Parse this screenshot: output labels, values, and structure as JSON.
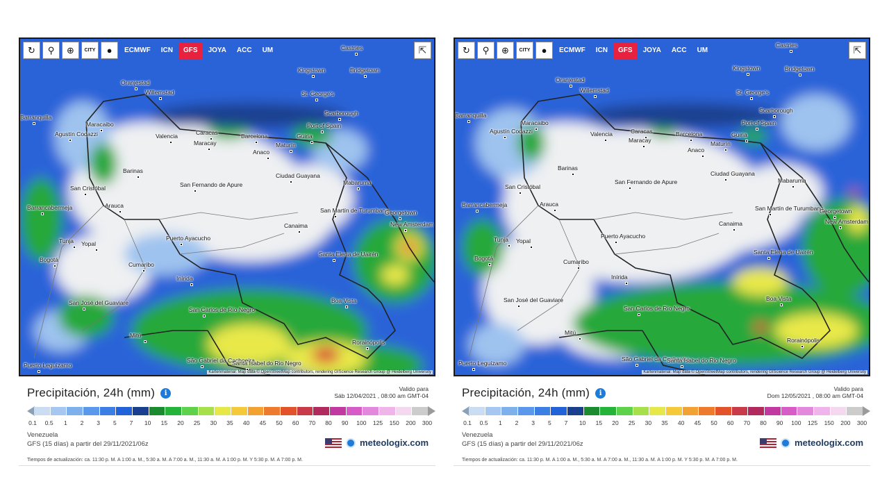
{
  "panels": [
    {
      "toolbar": {
        "buttons": [
          {
            "name": "reload",
            "glyph": "↻"
          },
          {
            "name": "location",
            "glyph": "⚲"
          },
          {
            "name": "zoom",
            "glyph": "⊕"
          },
          {
            "name": "city",
            "glyph": "CITY"
          },
          {
            "name": "dot",
            "glyph": "●"
          }
        ],
        "models": [
          "ECMWF",
          "ICN",
          "GFS",
          "JOYA",
          "ACC",
          "UM"
        ],
        "active_model": "GFS",
        "share_glyph": "⇱"
      },
      "title": "Precipitación, 24h (mm)",
      "valid_label": "Valido para",
      "valid_date": "Sáb 12/04/2021 , 08:00 am GMT-04",
      "region": "Venezuela",
      "run": "GFS (15 días) a partir del 29/11/2021/06z",
      "brand": "meteologix.com",
      "updates": "Tiempos de actualización: ca. 11:30 p. M. A 1:00 a. M., 5:30 a. M. A 7:00 a. M., 11:30 a. M. A 1:00 p. M. Y 5:30 p. M. A 7:00 p. M.",
      "attribution": "Kartenmaterial: Map data © OpenStreetMap contributors, rendering GIScience Research Group @ Heidelberg University",
      "cities": [
        {
          "name": "Castries"
        },
        {
          "name": "Kingstown"
        },
        {
          "name": "Bridgetown"
        },
        {
          "name": "Oranjestad"
        },
        {
          "name": "Willemstad"
        },
        {
          "name": "St. George's"
        },
        {
          "name": "Scarborough"
        },
        {
          "name": "Barranquilla"
        },
        {
          "name": "Maracaibo"
        },
        {
          "name": "Port of Spain"
        },
        {
          "name": "Valencia"
        },
        {
          "name": "Caracas"
        },
        {
          "name": "Maracay"
        },
        {
          "name": "Barcelona"
        },
        {
          "name": "Güiria"
        },
        {
          "name": "Agustín Codazzi"
        },
        {
          "name": "Anaco"
        },
        {
          "name": "Maturín"
        },
        {
          "name": "Barinas"
        },
        {
          "name": "Ciudad Guayana"
        },
        {
          "name": "San Cristóbal"
        },
        {
          "name": "San Fernando de Apure"
        },
        {
          "name": "Mabaruma"
        },
        {
          "name": "Arauca"
        },
        {
          "name": "Barrancabermeja"
        },
        {
          "name": "San Martín de Turumbang"
        },
        {
          "name": "Georgetown"
        },
        {
          "name": "New Amsterdam"
        },
        {
          "name": "Canaima"
        },
        {
          "name": "Tunja"
        },
        {
          "name": "Yopal"
        },
        {
          "name": "Puerto Ayacucho"
        },
        {
          "name": "Bogotá"
        },
        {
          "name": "Cumaribo"
        },
        {
          "name": "Santa Elena de Uairén"
        },
        {
          "name": "Inírida"
        },
        {
          "name": "San José del Guaviare"
        },
        {
          "name": "Boa Vista"
        },
        {
          "name": "San Carlos de Río Negro"
        },
        {
          "name": "Mitú"
        },
        {
          "name": "Rorainópolis"
        },
        {
          "name": "São Gabriel da Cachoeira"
        },
        {
          "name": "Santa Isabel do Rio Negro"
        },
        {
          "name": "Puerto Leguízamo"
        }
      ]
    },
    {
      "toolbar": {
        "buttons": [
          {
            "name": "reload",
            "glyph": "↻"
          },
          {
            "name": "location",
            "glyph": "⚲"
          },
          {
            "name": "zoom",
            "glyph": "⊕"
          },
          {
            "name": "city",
            "glyph": "CITY"
          },
          {
            "name": "dot",
            "glyph": "●"
          }
        ],
        "models": [
          "ECMWF",
          "ICN",
          "GFS",
          "JOYA",
          "ACC",
          "UM"
        ],
        "active_model": "GFS",
        "share_glyph": "⇱"
      },
      "title": "Precipitación, 24h (mm)",
      "valid_label": "Valido para",
      "valid_date": "Dom 12/05/2021 , 08:00 am GMT-04",
      "region": "Venezuela",
      "run": "GFS (15 días) a partir del 29/11/2021/06z",
      "brand": "meteologix.com",
      "updates": "Tiempos de actualización: ca. 11:30 p. M. A 1:00 a. M., 5:30 a. M. A 7:00 a. M., 11:30 a. M. A 1:00 p. M. Y 5:30 p. M. A 7:00 p. M.",
      "attribution": "Kartenmaterial: Map data © OpenStreetMap contributors, rendering GIScience Research Group @ Heidelberg University",
      "cities": [
        {
          "name": "Castries"
        },
        {
          "name": "Kingstown"
        },
        {
          "name": "Bridgetown"
        },
        {
          "name": "Oranjestad"
        },
        {
          "name": "Willemstad"
        },
        {
          "name": "St. George's"
        },
        {
          "name": "Scarborough"
        },
        {
          "name": "Barranquilla"
        },
        {
          "name": "Maracaibo"
        },
        {
          "name": "Port of Spain"
        },
        {
          "name": "Valencia"
        },
        {
          "name": "Caracas"
        },
        {
          "name": "Maracay"
        },
        {
          "name": "Barcelona"
        },
        {
          "name": "Güiria"
        },
        {
          "name": "Agustín Codazzi"
        },
        {
          "name": "Anaco"
        },
        {
          "name": "Maturín"
        },
        {
          "name": "Barinas"
        },
        {
          "name": "Ciudad Guayana"
        },
        {
          "name": "San Cristóbal"
        },
        {
          "name": "San Fernando de Apure"
        },
        {
          "name": "Mabaruma"
        },
        {
          "name": "Arauca"
        },
        {
          "name": "Barrancabermeja"
        },
        {
          "name": "San Martín de Turumbang"
        },
        {
          "name": "Georgetown"
        },
        {
          "name": "New Amsterdam"
        },
        {
          "name": "Canaima"
        },
        {
          "name": "Tunja"
        },
        {
          "name": "Yopal"
        },
        {
          "name": "Puerto Ayacucho"
        },
        {
          "name": "Bogotá"
        },
        {
          "name": "Cumaribo"
        },
        {
          "name": "Santa Elena de Uairén"
        },
        {
          "name": "Inírida"
        },
        {
          "name": "San José del Guaviare"
        },
        {
          "name": "Boa Vista"
        },
        {
          "name": "San Carlos de Río Negro"
        },
        {
          "name": "Mitú"
        },
        {
          "name": "Rorainópolis"
        },
        {
          "name": "São Gabriel da Cachoeira"
        },
        {
          "name": "Santa Isabel do Rio Negro"
        },
        {
          "name": "Puerto Leguízamo"
        }
      ]
    }
  ],
  "legend": {
    "values": [
      "0.1",
      "0.5",
      "1",
      "2",
      "3",
      "5",
      "7",
      "10",
      "15",
      "20",
      "25",
      "30",
      "35",
      "40",
      "45",
      "50",
      "60",
      "70",
      "80",
      "90",
      "100",
      "125",
      "150",
      "200",
      "300"
    ],
    "colors": [
      "#c9dcf2",
      "#a6c8f0",
      "#7fb0ee",
      "#5b97ea",
      "#3b7ee4",
      "#2262d8",
      "#1a3f8e",
      "#1c8a2e",
      "#26b33a",
      "#5fd24c",
      "#a6e04a",
      "#e6e84a",
      "#f5c93a",
      "#f2a235",
      "#ee7a2e",
      "#e2532a",
      "#c93a48",
      "#b02a5e",
      "#c23aa0",
      "#d75cc8",
      "#e488dc",
      "#efb4ea",
      "#f3d8f0",
      "#cccccc"
    ]
  }
}
